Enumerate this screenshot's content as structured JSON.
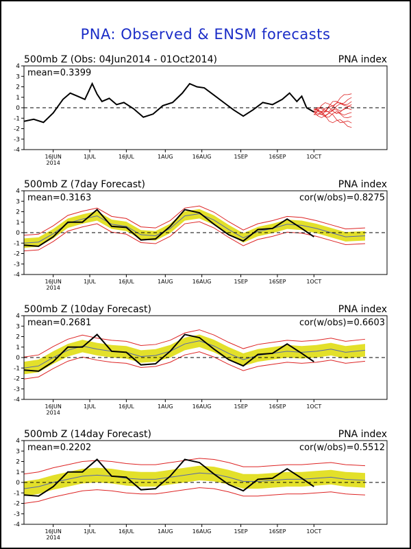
{
  "page_title": "PNA: Observed & ENSM forecasts",
  "colors": {
    "observed": "#000000",
    "ensemble_mean": "#5566aa",
    "ensemble_band": "#e3e02a",
    "ensemble_spread": "#dd2222",
    "title": "#1a2cc7"
  },
  "chart_data": [
    {
      "type": "line",
      "title_left": "500mb Z (Obs: 04Jun2014 - 01Oct2014)",
      "title_right": "PNA index",
      "stat_left": "mean=0.3399",
      "stat_right": "",
      "xlim": [
        "2014-06-04",
        "2014-10-31"
      ],
      "ylim": [
        -4,
        4
      ],
      "yticks": [
        "4",
        "3",
        "2",
        "1",
        "0",
        "-1",
        "-2",
        "-3",
        "-4"
      ],
      "xticks": [
        {
          "date": "2014-06-16",
          "label": "16JUN",
          "sublabel": "2014"
        },
        {
          "date": "2014-07-01",
          "label": "1JUL",
          "sublabel": ""
        },
        {
          "date": "2014-07-16",
          "label": "16JUL",
          "sublabel": ""
        },
        {
          "date": "2014-08-01",
          "label": "1AUG",
          "sublabel": ""
        },
        {
          "date": "2014-08-16",
          "label": "16AUG",
          "sublabel": ""
        },
        {
          "date": "2014-09-01",
          "label": "1SEP",
          "sublabel": ""
        },
        {
          "date": "2014-09-16",
          "label": "16SEP",
          "sublabel": ""
        },
        {
          "date": "2014-10-01",
          "label": "1OCT",
          "sublabel": ""
        }
      ],
      "zero_line": "dashed",
      "series": [
        {
          "role": "observed",
          "x": [
            "2014-06-04",
            "2014-06-08",
            "2014-06-12",
            "2014-06-16",
            "2014-06-20",
            "2014-06-23",
            "2014-06-26",
            "2014-06-29",
            "2014-07-02",
            "2014-07-04",
            "2014-07-06",
            "2014-07-09",
            "2014-07-12",
            "2014-07-15",
            "2014-07-19",
            "2014-07-23",
            "2014-07-27",
            "2014-07-31",
            "2014-08-04",
            "2014-08-08",
            "2014-08-11",
            "2014-08-14",
            "2014-08-17",
            "2014-08-21",
            "2014-08-25",
            "2014-08-29",
            "2014-09-02",
            "2014-09-06",
            "2014-09-10",
            "2014-09-14",
            "2014-09-18",
            "2014-09-21",
            "2014-09-24",
            "2014-09-26",
            "2014-09-28",
            "2014-10-01"
          ],
          "y": [
            -1.3,
            -1.1,
            -1.4,
            -0.5,
            0.8,
            1.4,
            1.1,
            0.8,
            2.3,
            1.3,
            0.6,
            0.9,
            0.3,
            0.5,
            -0.1,
            -0.9,
            -0.6,
            0.2,
            0.5,
            1.4,
            2.3,
            2.0,
            1.9,
            1.2,
            0.5,
            -0.2,
            -0.8,
            -0.2,
            0.5,
            0.3,
            0.8,
            1.4,
            0.6,
            1.1,
            0.0,
            -0.4
          ]
        },
        {
          "role": "forecast_members_start",
          "x": [
            "2014-10-01"
          ],
          "y": [
            -0.4
          ]
        }
      ]
    },
    {
      "type": "line",
      "title_left": "500mb Z (7day Forecast)",
      "title_right": "PNA index",
      "stat_left": "mean=0.3163",
      "stat_right": "cor(w/obs)=0.8275",
      "xlim": [
        "2014-06-04",
        "2014-10-31"
      ],
      "ylim": [
        -4,
        4
      ],
      "series": [
        {
          "role": "observed",
          "x": [
            "2014-06-04",
            "2014-06-10",
            "2014-06-16",
            "2014-06-22",
            "2014-06-28",
            "2014-07-04",
            "2014-07-10",
            "2014-07-16",
            "2014-07-22",
            "2014-07-28",
            "2014-08-03",
            "2014-08-09",
            "2014-08-15",
            "2014-08-21",
            "2014-08-27",
            "2014-09-02",
            "2014-09-08",
            "2014-09-14",
            "2014-09-20",
            "2014-09-26",
            "2014-10-01"
          ],
          "y": [
            -1.2,
            -1.3,
            -0.4,
            1.0,
            1.0,
            2.2,
            0.6,
            0.5,
            -0.7,
            -0.6,
            0.6,
            2.2,
            1.9,
            0.8,
            -0.2,
            -0.8,
            0.3,
            0.4,
            1.3,
            0.4,
            -0.4
          ]
        },
        {
          "role": "ensemble_mean",
          "x": [
            "2014-06-04",
            "2014-06-10",
            "2014-06-16",
            "2014-06-22",
            "2014-06-28",
            "2014-07-04",
            "2014-07-10",
            "2014-07-16",
            "2014-07-22",
            "2014-07-28",
            "2014-08-03",
            "2014-08-09",
            "2014-08-15",
            "2014-08-21",
            "2014-08-27",
            "2014-09-02",
            "2014-09-08",
            "2014-09-14",
            "2014-09-20",
            "2014-09-26",
            "2014-10-02",
            "2014-10-08",
            "2014-10-14",
            "2014-10-22"
          ],
          "y": [
            -1.0,
            -0.9,
            -0.1,
            0.9,
            1.3,
            1.6,
            0.8,
            0.6,
            -0.2,
            -0.3,
            0.4,
            1.6,
            1.8,
            1.2,
            0.3,
            -0.5,
            0.1,
            0.4,
            0.8,
            0.7,
            0.4,
            0.0,
            -0.4,
            -0.3
          ]
        },
        {
          "role": "band_half_width",
          "value": 0.45
        },
        {
          "role": "spread_half_width",
          "value": 0.75
        }
      ]
    },
    {
      "type": "line",
      "title_left": "500mb Z (10day Forecast)",
      "title_right": "PNA index",
      "stat_left": "mean=0.2681",
      "stat_right": "cor(w/obs)=0.6603",
      "xlim": [
        "2014-06-04",
        "2014-10-31"
      ],
      "ylim": [
        -4,
        4
      ],
      "series": [
        {
          "role": "observed",
          "x": [
            "2014-06-04",
            "2014-06-10",
            "2014-06-16",
            "2014-06-22",
            "2014-06-28",
            "2014-07-04",
            "2014-07-10",
            "2014-07-16",
            "2014-07-22",
            "2014-07-28",
            "2014-08-03",
            "2014-08-09",
            "2014-08-15",
            "2014-08-21",
            "2014-08-27",
            "2014-09-02",
            "2014-09-08",
            "2014-09-14",
            "2014-09-20",
            "2014-09-26",
            "2014-10-01"
          ],
          "y": [
            -1.2,
            -1.3,
            -0.4,
            1.0,
            1.0,
            2.2,
            0.6,
            0.5,
            -0.7,
            -0.6,
            0.6,
            2.2,
            1.9,
            0.8,
            -0.2,
            -0.8,
            0.3,
            0.4,
            1.3,
            0.4,
            -0.4
          ]
        },
        {
          "role": "ensemble_mean",
          "x": [
            "2014-06-04",
            "2014-06-10",
            "2014-06-16",
            "2014-06-22",
            "2014-06-28",
            "2014-07-04",
            "2014-07-10",
            "2014-07-16",
            "2014-07-22",
            "2014-07-28",
            "2014-08-03",
            "2014-08-09",
            "2014-08-15",
            "2014-08-21",
            "2014-08-27",
            "2014-09-02",
            "2014-09-08",
            "2014-09-14",
            "2014-09-20",
            "2014-09-26",
            "2014-10-02",
            "2014-10-08",
            "2014-10-14",
            "2014-10-22"
          ],
          "y": [
            -1.0,
            -0.8,
            0.0,
            0.7,
            1.1,
            0.8,
            0.6,
            0.5,
            0.1,
            0.2,
            0.6,
            1.3,
            1.6,
            1.1,
            0.4,
            -0.2,
            0.2,
            0.4,
            0.6,
            0.5,
            0.6,
            0.8,
            0.5,
            0.7
          ]
        },
        {
          "role": "band_half_width",
          "value": 0.6
        },
        {
          "role": "spread_half_width",
          "value": 1.05
        }
      ]
    },
    {
      "type": "line",
      "title_left": "500mb Z (14day Forecast)",
      "title_right": "PNA index",
      "stat_left": "mean=0.2202",
      "stat_right": "cor(w/obs)=0.5512",
      "xlim": [
        "2014-06-04",
        "2014-10-31"
      ],
      "ylim": [
        -4,
        4
      ],
      "series": [
        {
          "role": "observed",
          "x": [
            "2014-06-04",
            "2014-06-10",
            "2014-06-16",
            "2014-06-22",
            "2014-06-28",
            "2014-07-04",
            "2014-07-10",
            "2014-07-16",
            "2014-07-22",
            "2014-07-28",
            "2014-08-03",
            "2014-08-09",
            "2014-08-15",
            "2014-08-21",
            "2014-08-27",
            "2014-09-02",
            "2014-09-08",
            "2014-09-14",
            "2014-09-20",
            "2014-09-26",
            "2014-10-01"
          ],
          "y": [
            -1.2,
            -1.3,
            -0.4,
            1.0,
            1.0,
            2.2,
            0.6,
            0.5,
            -0.7,
            -0.6,
            0.6,
            2.2,
            1.9,
            0.8,
            -0.2,
            -0.8,
            0.3,
            0.4,
            1.3,
            0.4,
            -0.4
          ]
        },
        {
          "role": "ensemble_mean",
          "x": [
            "2014-06-04",
            "2014-06-10",
            "2014-06-16",
            "2014-06-22",
            "2014-06-28",
            "2014-07-04",
            "2014-07-10",
            "2014-07-16",
            "2014-07-22",
            "2014-07-28",
            "2014-08-03",
            "2014-08-09",
            "2014-08-15",
            "2014-08-21",
            "2014-08-27",
            "2014-09-02",
            "2014-09-08",
            "2014-09-14",
            "2014-09-20",
            "2014-09-26",
            "2014-10-02",
            "2014-10-08",
            "2014-10-14",
            "2014-10-22"
          ],
          "y": [
            -0.6,
            -0.4,
            0.0,
            0.3,
            0.6,
            0.7,
            0.6,
            0.4,
            0.3,
            0.3,
            0.5,
            0.7,
            0.9,
            0.8,
            0.5,
            0.1,
            0.1,
            0.2,
            0.3,
            0.3,
            0.4,
            0.5,
            0.3,
            0.2
          ]
        },
        {
          "role": "band_half_width",
          "value": 0.7
        },
        {
          "role": "spread_half_width",
          "value": 1.4
        }
      ]
    }
  ]
}
